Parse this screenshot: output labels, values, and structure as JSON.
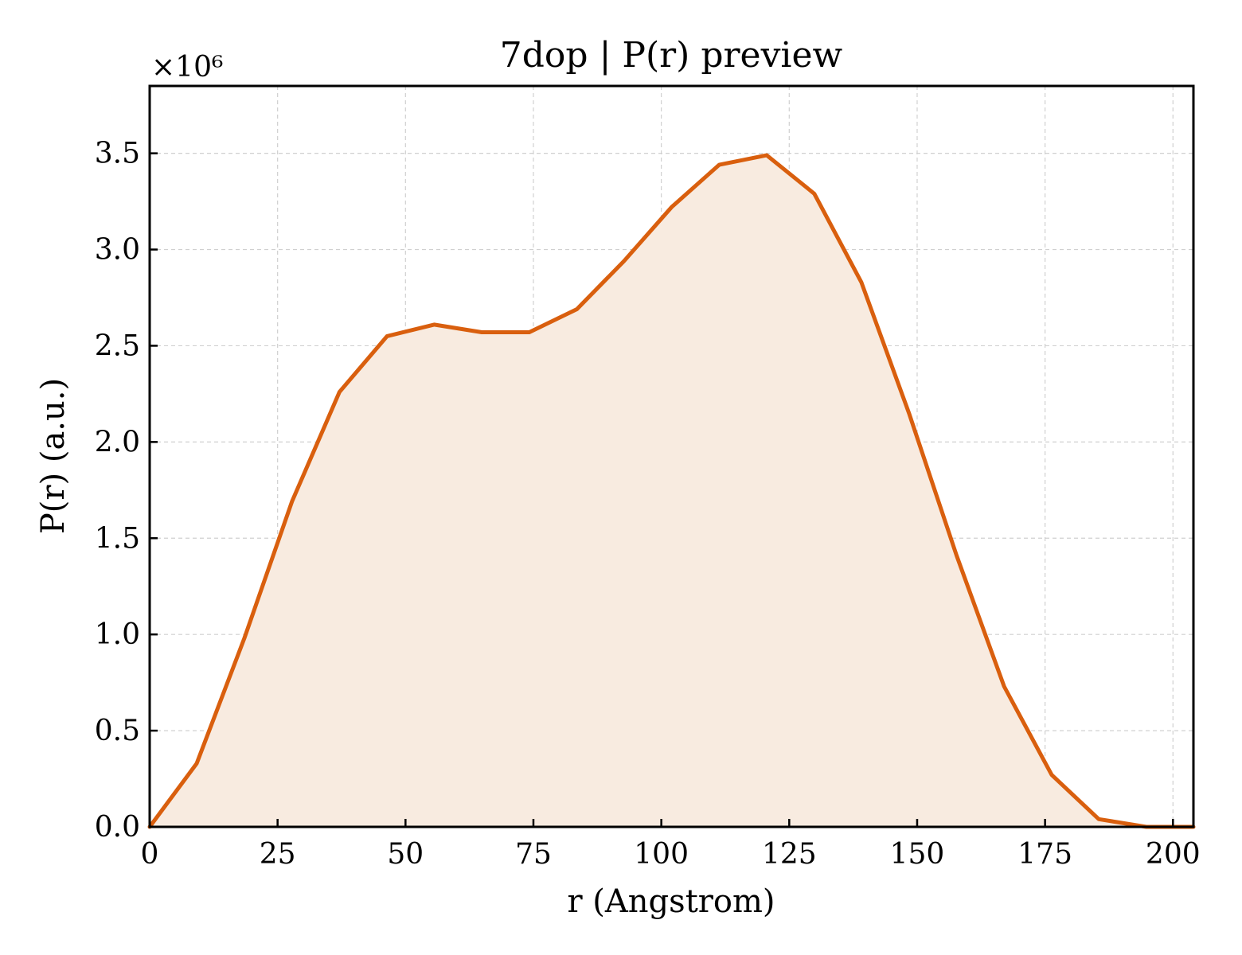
{
  "chart_data": {
    "type": "area",
    "title": "7dop | P(r) preview",
    "xlabel": "r (Angstrom)",
    "ylabel": "P(r) (a.u.)",
    "y_multiplier_label": "×10⁶",
    "xlim": [
      0,
      204
    ],
    "ylim": [
      0,
      3.85
    ],
    "xticks": [
      0,
      25,
      50,
      75,
      100,
      125,
      150,
      175,
      200
    ],
    "xtick_labels": [
      "0",
      "25",
      "50",
      "75",
      "100",
      "125",
      "150",
      "175",
      "200"
    ],
    "yticks": [
      0.0,
      0.5,
      1.0,
      1.5,
      2.0,
      2.5,
      3.0,
      3.5
    ],
    "ytick_labels": [
      "0.0",
      "0.5",
      "1.0",
      "1.5",
      "2.0",
      "2.5",
      "3.0",
      "3.5"
    ],
    "grid": true,
    "line_color": "#d95f0e",
    "fill_color": "#f8ebe0",
    "series": [
      {
        "x": [
          0,
          9.2,
          18.5,
          27.8,
          37.1,
          46.4,
          55.6,
          64.9,
          74.2,
          83.5,
          92.7,
          102,
          111.3,
          120.6,
          129.9,
          139.1,
          148.4,
          157.7,
          167,
          176.3,
          185.5,
          194.8,
          204
        ],
        "y": [
          0.0,
          0.33,
          0.98,
          1.69,
          2.26,
          2.55,
          2.61,
          2.57,
          2.57,
          2.69,
          2.94,
          3.22,
          3.44,
          3.49,
          3.29,
          2.83,
          2.15,
          1.41,
          0.73,
          0.27,
          0.04,
          0.0,
          0.0
        ]
      }
    ]
  }
}
